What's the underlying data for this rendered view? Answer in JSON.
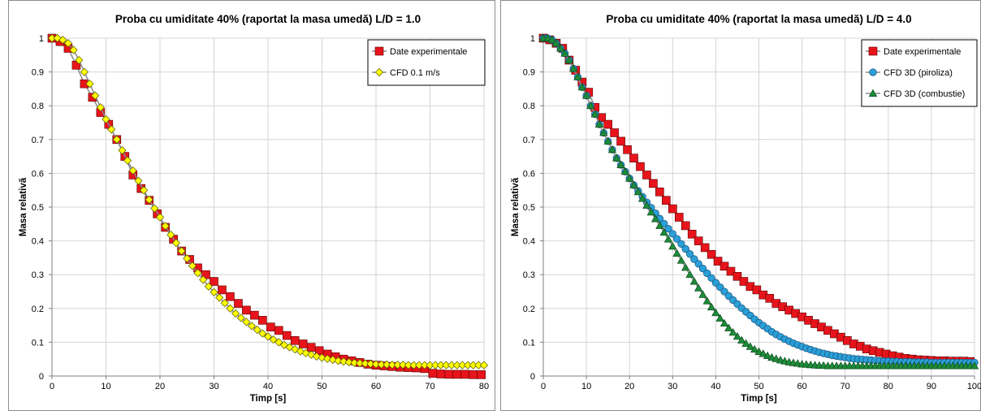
{
  "chart_data": [
    {
      "type": "line",
      "title": "Proba cu umiditate 40% (raportat la masa umedă) L/D = 1.0",
      "xlabel": "Timp [s]",
      "ylabel": "Masa relativă",
      "xlim": [
        0,
        80
      ],
      "ylim": [
        0,
        1
      ],
      "xticks": [
        0,
        10,
        20,
        30,
        40,
        50,
        60,
        70,
        80
      ],
      "yticks": [
        0,
        0.1,
        0.2,
        0.3,
        0.4,
        0.5,
        0.6,
        0.7,
        0.8,
        0.9,
        1
      ],
      "grid": true,
      "legend_position": "top-right",
      "series": [
        {
          "name": "Date experimentale",
          "color": "#e8141b",
          "marker": "square",
          "x": [
            0,
            1.5,
            3,
            4.5,
            6,
            7.5,
            9,
            10.5,
            12,
            13.5,
            15,
            16.5,
            18,
            19.5,
            21,
            22.5,
            24,
            25.5,
            27,
            28.5,
            30,
            31.5,
            33,
            34.5,
            36,
            37.5,
            39,
            40.5,
            42,
            43.5,
            45,
            46.5,
            48,
            49.5,
            51,
            52.5,
            54,
            55.5,
            57,
            58.5,
            60,
            61.5,
            63,
            64.5,
            66,
            67.5,
            69,
            70.5,
            72,
            73.5,
            75,
            76.5,
            78,
            79.5
          ],
          "y": [
            1.0,
            0.99,
            0.97,
            0.92,
            0.865,
            0.825,
            0.78,
            0.745,
            0.7,
            0.65,
            0.595,
            0.555,
            0.52,
            0.48,
            0.44,
            0.405,
            0.37,
            0.345,
            0.32,
            0.3,
            0.28,
            0.255,
            0.235,
            0.215,
            0.195,
            0.18,
            0.165,
            0.145,
            0.135,
            0.12,
            0.105,
            0.095,
            0.085,
            0.075,
            0.065,
            0.057,
            0.05,
            0.045,
            0.04,
            0.035,
            0.032,
            0.03,
            0.028,
            0.026,
            0.025,
            0.024,
            0.022,
            0.008,
            0.006,
            0.005,
            0.005,
            0.005,
            0.004,
            0.004
          ]
        },
        {
          "name": "CFD 0.1 m/s",
          "color": "#ffff00",
          "marker": "diamond",
          "x": [
            0,
            1,
            2,
            3,
            4,
            5,
            6,
            7,
            8,
            9,
            10,
            11,
            12,
            13,
            14,
            15,
            16,
            17,
            18,
            19,
            20,
            21,
            22,
            23,
            24,
            25,
            26,
            27,
            28,
            29,
            30,
            31,
            32,
            33,
            34,
            35,
            36,
            37,
            38,
            39,
            40,
            41,
            42,
            43,
            44,
            45,
            46,
            47,
            48,
            49,
            50,
            51,
            52,
            53,
            54,
            55,
            56,
            57,
            58,
            59,
            60,
            61,
            62,
            63,
            64,
            65,
            66,
            67,
            68,
            69,
            70,
            71,
            72,
            73,
            74,
            75,
            76,
            77,
            78,
            79,
            80
          ],
          "y": [
            1.0,
            1.0,
            0.995,
            0.985,
            0.965,
            0.935,
            0.9,
            0.865,
            0.83,
            0.795,
            0.76,
            0.73,
            0.7,
            0.668,
            0.638,
            0.608,
            0.578,
            0.55,
            0.522,
            0.496,
            0.47,
            0.444,
            0.418,
            0.394,
            0.37,
            0.348,
            0.326,
            0.305,
            0.285,
            0.265,
            0.248,
            0.232,
            0.216,
            0.2,
            0.185,
            0.172,
            0.16,
            0.148,
            0.137,
            0.126,
            0.117,
            0.108,
            0.1,
            0.092,
            0.085,
            0.079,
            0.073,
            0.068,
            0.063,
            0.058,
            0.054,
            0.051,
            0.048,
            0.045,
            0.043,
            0.041,
            0.039,
            0.038,
            0.037,
            0.036,
            0.035,
            0.034,
            0.034,
            0.033,
            0.033,
            0.033,
            0.032,
            0.032,
            0.032,
            0.032,
            0.032,
            0.032,
            0.032,
            0.032,
            0.032,
            0.032,
            0.032,
            0.032,
            0.032,
            0.032,
            0.032
          ]
        }
      ]
    },
    {
      "type": "line",
      "title": "Proba cu umiditate 40% (raportat la masa umedă) L/D = 4.0",
      "xlabel": "Timp [s]",
      "ylabel": "Masa relativă",
      "xlim": [
        0,
        100
      ],
      "ylim": [
        0,
        1
      ],
      "xticks": [
        0,
        10,
        20,
        30,
        40,
        50,
        60,
        70,
        80,
        90,
        100
      ],
      "yticks": [
        0,
        0.1,
        0.2,
        0.3,
        0.4,
        0.5,
        0.6,
        0.7,
        0.8,
        0.9,
        1
      ],
      "grid": true,
      "legend_position": "top-right",
      "series": [
        {
          "name": "Date experimentale",
          "color": "#e8141b",
          "marker": "square",
          "x": [
            0,
            1.5,
            3,
            4.5,
            6,
            7.5,
            9,
            10.5,
            12,
            13.5,
            15,
            16.5,
            18,
            19.5,
            21,
            22.5,
            24,
            25.5,
            27,
            28.5,
            30,
            31.5,
            33,
            34.5,
            36,
            37.5,
            39,
            40.5,
            42,
            43.5,
            45,
            46.5,
            48,
            49.5,
            51,
            52.5,
            54,
            55.5,
            57,
            58.5,
            60,
            61.5,
            63,
            64.5,
            66,
            67.5,
            69,
            70.5,
            72,
            73.5,
            75,
            76.5,
            78,
            79.5,
            81,
            82.5,
            84,
            85.5,
            87,
            88.5,
            90,
            91.5,
            93,
            94.5,
            96,
            97.5,
            99
          ],
          "y": [
            1.0,
            0.995,
            0.985,
            0.97,
            0.935,
            0.905,
            0.87,
            0.84,
            0.795,
            0.765,
            0.745,
            0.72,
            0.695,
            0.67,
            0.645,
            0.62,
            0.595,
            0.57,
            0.545,
            0.52,
            0.495,
            0.47,
            0.445,
            0.42,
            0.4,
            0.38,
            0.36,
            0.34,
            0.325,
            0.31,
            0.295,
            0.28,
            0.265,
            0.255,
            0.24,
            0.23,
            0.215,
            0.205,
            0.195,
            0.185,
            0.175,
            0.165,
            0.155,
            0.145,
            0.135,
            0.125,
            0.115,
            0.105,
            0.095,
            0.088,
            0.08,
            0.075,
            0.07,
            0.065,
            0.06,
            0.056,
            0.052,
            0.05,
            0.048,
            0.047,
            0.046,
            0.045,
            0.045,
            0.044,
            0.044,
            0.044,
            0.043
          ]
        },
        {
          "name": "CFD 3D (piroliza)",
          "color": "#2a9fd8",
          "marker": "circle",
          "x": [
            0,
            1,
            2,
            3,
            4,
            5,
            6,
            7,
            8,
            9,
            10,
            11,
            12,
            13,
            14,
            15,
            16,
            17,
            18,
            19,
            20,
            21,
            22,
            23,
            24,
            25,
            26,
            27,
            28,
            29,
            30,
            31,
            32,
            33,
            34,
            35,
            36,
            37,
            38,
            39,
            40,
            41,
            42,
            43,
            44,
            45,
            46,
            47,
            48,
            49,
            50,
            51,
            52,
            53,
            54,
            55,
            56,
            57,
            58,
            59,
            60,
            61,
            62,
            63,
            64,
            65,
            66,
            67,
            68,
            69,
            70,
            71,
            72,
            73,
            74,
            75,
            76,
            77,
            78,
            79,
            80,
            81,
            82,
            83,
            84,
            85,
            86,
            87,
            88,
            89,
            90,
            91,
            92,
            93,
            94,
            95,
            96,
            97,
            98,
            99,
            100
          ],
          "y": [
            1.0,
            1.0,
            0.995,
            0.985,
            0.97,
            0.955,
            0.935,
            0.91,
            0.885,
            0.855,
            0.83,
            0.8,
            0.775,
            0.745,
            0.72,
            0.695,
            0.67,
            0.645,
            0.625,
            0.605,
            0.585,
            0.565,
            0.548,
            0.531,
            0.514,
            0.498,
            0.482,
            0.466,
            0.451,
            0.436,
            0.421,
            0.406,
            0.391,
            0.376,
            0.361,
            0.346,
            0.332,
            0.318,
            0.304,
            0.29,
            0.276,
            0.263,
            0.25,
            0.237,
            0.225,
            0.213,
            0.201,
            0.19,
            0.179,
            0.168,
            0.158,
            0.149,
            0.14,
            0.131,
            0.123,
            0.116,
            0.109,
            0.103,
            0.097,
            0.092,
            0.087,
            0.082,
            0.078,
            0.074,
            0.07,
            0.067,
            0.064,
            0.061,
            0.059,
            0.057,
            0.055,
            0.053,
            0.051,
            0.05,
            0.049,
            0.048,
            0.047,
            0.046,
            0.045,
            0.044,
            0.044,
            0.043,
            0.043,
            0.042,
            0.042,
            0.042,
            0.041,
            0.041,
            0.041,
            0.041,
            0.04,
            0.04,
            0.04,
            0.04,
            0.04,
            0.04,
            0.04,
            0.04,
            0.04,
            0.04,
            0.04
          ]
        },
        {
          "name": "CFD 3D (combustie)",
          "color": "#1e8c3a",
          "marker": "triangle",
          "x": [
            0,
            1,
            2,
            3,
            4,
            5,
            6,
            7,
            8,
            9,
            10,
            11,
            12,
            13,
            14,
            15,
            16,
            17,
            18,
            19,
            20,
            21,
            22,
            23,
            24,
            25,
            26,
            27,
            28,
            29,
            30,
            31,
            32,
            33,
            34,
            35,
            36,
            37,
            38,
            39,
            40,
            41,
            42,
            43,
            44,
            45,
            46,
            47,
            48,
            49,
            50,
            51,
            52,
            53,
            54,
            55,
            56,
            57,
            58,
            59,
            60,
            61,
            62,
            63,
            64,
            65,
            66,
            67,
            68,
            69,
            70,
            71,
            72,
            73,
            74,
            75,
            76,
            77,
            78,
            79,
            80,
            81,
            82,
            83,
            84,
            85,
            86,
            87,
            88,
            89,
            90,
            91,
            92,
            93,
            94,
            95,
            96,
            97,
            98,
            99,
            100
          ],
          "y": [
            1.0,
            1.0,
            0.995,
            0.985,
            0.97,
            0.955,
            0.935,
            0.91,
            0.885,
            0.855,
            0.83,
            0.8,
            0.775,
            0.745,
            0.72,
            0.695,
            0.67,
            0.645,
            0.625,
            0.605,
            0.585,
            0.565,
            0.545,
            0.525,
            0.505,
            0.485,
            0.465,
            0.445,
            0.425,
            0.405,
            0.384,
            0.363,
            0.342,
            0.321,
            0.3,
            0.28,
            0.26,
            0.241,
            0.222,
            0.204,
            0.187,
            0.171,
            0.156,
            0.142,
            0.129,
            0.117,
            0.106,
            0.096,
            0.087,
            0.079,
            0.072,
            0.066,
            0.06,
            0.055,
            0.051,
            0.047,
            0.044,
            0.041,
            0.039,
            0.037,
            0.035,
            0.034,
            0.033,
            0.032,
            0.031,
            0.031,
            0.03,
            0.03,
            0.03,
            0.03,
            0.03,
            0.03,
            0.03,
            0.03,
            0.03,
            0.03,
            0.03,
            0.03,
            0.03,
            0.03,
            0.03,
            0.03,
            0.03,
            0.03,
            0.03,
            0.03,
            0.03,
            0.03,
            0.03,
            0.03,
            0.03,
            0.03,
            0.03,
            0.03,
            0.03,
            0.03,
            0.03,
            0.03,
            0.03,
            0.03,
            0.03
          ]
        }
      ]
    }
  ]
}
